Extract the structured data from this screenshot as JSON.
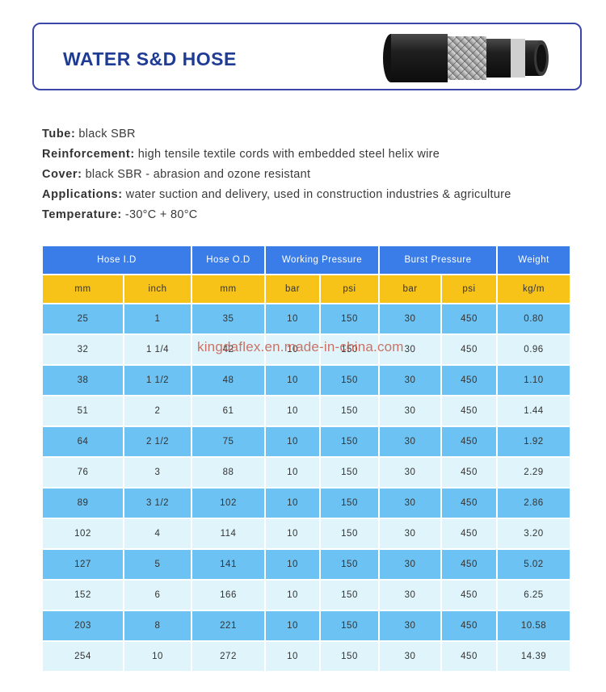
{
  "header": {
    "title": "WATER S&D HOSE"
  },
  "specs": [
    {
      "key": "Tube:",
      "value": "black SBR"
    },
    {
      "key": "Reinforcement:",
      "value": "high tensile textile cords with embedded steel helix wire"
    },
    {
      "key": "Cover:",
      "value": "black SBR - abrasion and ozone resistant"
    },
    {
      "key": "Applications:",
      "value": "water suction and delivery, used in construction industries & agriculture"
    },
    {
      "key": "Temperature:",
      "value": "-30°C + 80°C"
    }
  ],
  "table": {
    "groups": [
      "Hose I.D",
      "Hose O.D",
      "Working Pressure",
      "Burst Pressure",
      "Weight"
    ],
    "units": [
      "mm",
      "inch",
      "mm",
      "bar",
      "psi",
      "bar",
      "psi",
      "kg/m"
    ],
    "rows": [
      [
        "25",
        "1",
        "35",
        "10",
        "150",
        "30",
        "450",
        "0.80"
      ],
      [
        "32",
        "1 1/4",
        "42",
        "10",
        "150",
        "30",
        "450",
        "0.96"
      ],
      [
        "38",
        "1 1/2",
        "48",
        "10",
        "150",
        "30",
        "450",
        "1.10"
      ],
      [
        "51",
        "2",
        "61",
        "10",
        "150",
        "30",
        "450",
        "1.44"
      ],
      [
        "64",
        "2 1/2",
        "75",
        "10",
        "150",
        "30",
        "450",
        "1.92"
      ],
      [
        "76",
        "3",
        "88",
        "10",
        "150",
        "30",
        "450",
        "2.29"
      ],
      [
        "89",
        "3 1/2",
        "102",
        "10",
        "150",
        "30",
        "450",
        "2.86"
      ],
      [
        "102",
        "4",
        "114",
        "10",
        "150",
        "30",
        "450",
        "3.20"
      ],
      [
        "127",
        "5",
        "141",
        "10",
        "150",
        "30",
        "450",
        "5.02"
      ],
      [
        "152",
        "6",
        "166",
        "10",
        "150",
        "30",
        "450",
        "6.25"
      ],
      [
        "203",
        "8",
        "221",
        "10",
        "150",
        "30",
        "450",
        "10.58"
      ],
      [
        "254",
        "10",
        "272",
        "10",
        "150",
        "30",
        "450",
        "14.39"
      ]
    ]
  },
  "watermark": "kingdaflex.en.made-in-china.com",
  "colors": {
    "title": "#1f3c95",
    "frame": "#3b46a8",
    "header_row": "#3b7de8",
    "unit_row": "#f7c318",
    "row_dark": "#6cc2f2",
    "row_light": "#dff5fb"
  },
  "icons": {
    "product_image": "hose-icon"
  }
}
